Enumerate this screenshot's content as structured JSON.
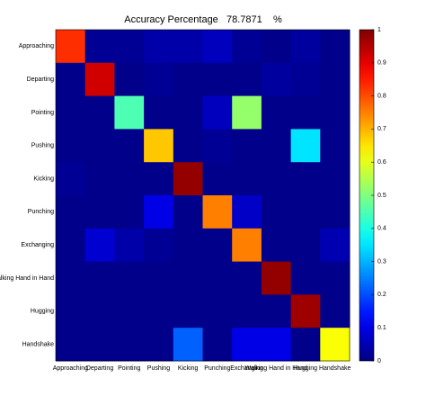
{
  "chart_data": {
    "type": "heatmap",
    "title": "Accuracy Percentage   78.7871    %",
    "categories": [
      "Approaching",
      "Departing",
      "Pointing",
      "Pushing",
      "Kicking",
      "Punching",
      "Exchanging",
      "Walking Hand in Hand",
      "Hugging",
      "Handshake"
    ],
    "values": [
      [
        0.83,
        0.02,
        0.02,
        0.04,
        0.04,
        0.06,
        0.02,
        0.01,
        0.03,
        0.01
      ],
      [
        0.01,
        0.92,
        0.01,
        0.02,
        0.01,
        0.01,
        0.01,
        0.03,
        0.02,
        0.01
      ],
      [
        0.01,
        0.01,
        0.45,
        0.01,
        0.01,
        0.06,
        0.52,
        0.01,
        0.01,
        0.01
      ],
      [
        0.01,
        0.01,
        0.01,
        0.68,
        0.01,
        0.02,
        0.01,
        0.01,
        0.35,
        0.01
      ],
      [
        0.02,
        0.01,
        0.01,
        0.01,
        0.98,
        0.01,
        0.01,
        0.01,
        0.01,
        0.01
      ],
      [
        0.01,
        0.01,
        0.01,
        0.1,
        0.01,
        0.75,
        0.07,
        0.01,
        0.01,
        0.01
      ],
      [
        0.01,
        0.08,
        0.04,
        0.02,
        0.01,
        0.01,
        0.75,
        0.01,
        0.01,
        0.05
      ],
      [
        0.01,
        0.01,
        0.01,
        0.01,
        0.01,
        0.01,
        0.01,
        0.98,
        0.01,
        0.01
      ],
      [
        0.01,
        0.01,
        0.01,
        0.01,
        0.01,
        0.01,
        0.01,
        0.01,
        0.97,
        0.01
      ],
      [
        0.01,
        0.01,
        0.01,
        0.01,
        0.22,
        0.01,
        0.1,
        0.1,
        0.01,
        0.62
      ]
    ],
    "colormap": "jet",
    "clim": [
      0,
      1
    ],
    "cticks": [
      0,
      0.1,
      0.2,
      0.3,
      0.4,
      0.5,
      0.6,
      0.7,
      0.8,
      0.9,
      1
    ]
  }
}
